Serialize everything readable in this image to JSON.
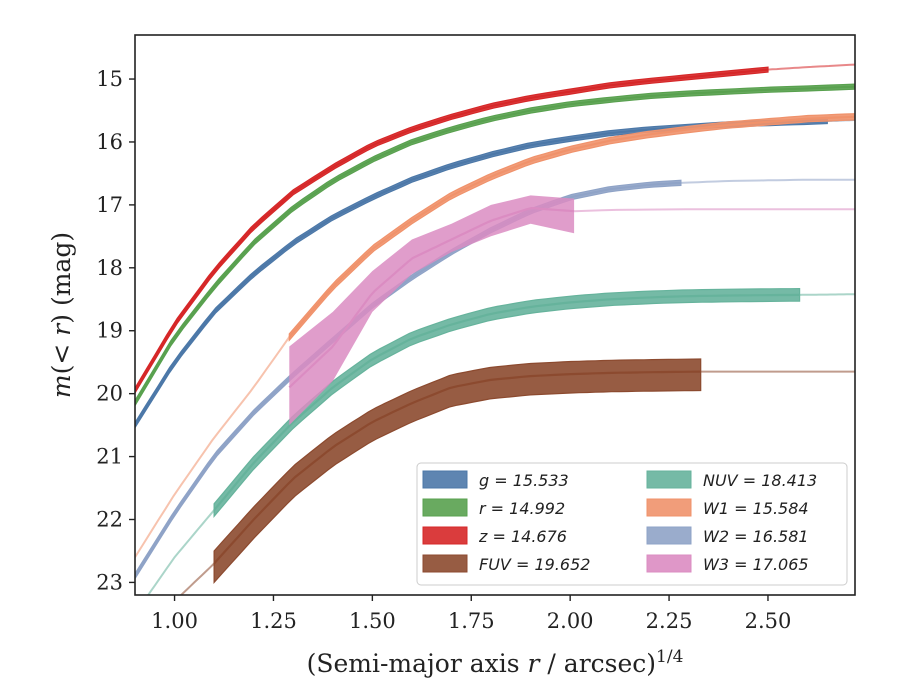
{
  "chart_data": {
    "type": "line",
    "xlabel": "(Semi-major axis r / arcsec)^{1/4}",
    "ylabel": "m(<r) (mag)",
    "xlim": [
      0.9,
      2.72
    ],
    "ylim": [
      23.2,
      14.3
    ],
    "y_inverted": true,
    "x_ticks": [
      "1.00",
      "1.25",
      "1.50",
      "1.75",
      "2.00",
      "2.25",
      "2.50"
    ],
    "y_ticks": [
      "15",
      "16",
      "17",
      "18",
      "19",
      "20",
      "21",
      "22",
      "23"
    ],
    "grid": false,
    "legend_position": "lower-right",
    "series": [
      {
        "key": "g",
        "name": "g = 15.533",
        "color": "#4c78a8",
        "end_obs": 2.65,
        "band": [
          0.04,
          0.04
        ],
        "x": [
          0.9,
          1.0,
          1.1,
          1.2,
          1.3,
          1.4,
          1.5,
          1.6,
          1.7,
          1.8,
          1.9,
          2.0,
          2.1,
          2.2,
          2.3,
          2.4,
          2.5,
          2.6,
          2.72
        ],
        "y": [
          20.5,
          19.5,
          18.7,
          18.1,
          17.6,
          17.2,
          16.88,
          16.6,
          16.38,
          16.2,
          16.05,
          15.95,
          15.86,
          15.8,
          15.76,
          15.72,
          15.7,
          15.68,
          15.65
        ]
      },
      {
        "key": "r",
        "name": "r = 14.992",
        "color": "#59a14f",
        "end_obs": 2.72,
        "band": [
          0.04,
          0.04
        ],
        "x": [
          0.9,
          1.0,
          1.1,
          1.2,
          1.3,
          1.4,
          1.5,
          1.6,
          1.7,
          1.8,
          1.9,
          2.0,
          2.1,
          2.2,
          2.3,
          2.4,
          2.5,
          2.6,
          2.72
        ],
        "y": [
          20.15,
          19.1,
          18.3,
          17.6,
          17.05,
          16.62,
          16.28,
          16.0,
          15.8,
          15.63,
          15.5,
          15.4,
          15.33,
          15.27,
          15.23,
          15.2,
          15.17,
          15.15,
          15.12
        ]
      },
      {
        "key": "z",
        "name": "z = 14.676",
        "color": "#d62728",
        "end_obs": 2.5,
        "band": [
          0.04,
          0.04
        ],
        "x": [
          0.9,
          1.0,
          1.1,
          1.2,
          1.3,
          1.4,
          1.5,
          1.6,
          1.7,
          1.8,
          1.9,
          2.0,
          2.1,
          2.2,
          2.3,
          2.4,
          2.5,
          2.6,
          2.72
        ],
        "y": [
          19.95,
          18.9,
          18.05,
          17.35,
          16.8,
          16.4,
          16.05,
          15.8,
          15.6,
          15.43,
          15.3,
          15.2,
          15.1,
          15.03,
          14.97,
          14.91,
          14.85,
          14.81,
          14.77
        ]
      },
      {
        "key": "FUV",
        "name": "FUV = 19.652",
        "color": "#8c4a2f",
        "start_obs": 1.1,
        "end_obs": 2.33,
        "band": [
          0.2,
          0.3
        ],
        "x": [
          0.9,
          1.0,
          1.1,
          1.2,
          1.3,
          1.4,
          1.5,
          1.6,
          1.7,
          1.8,
          1.9,
          2.0,
          2.1,
          2.2,
          2.33,
          2.72
        ],
        "y": [
          23.95,
          23.3,
          22.7,
          22.0,
          21.35,
          20.85,
          20.45,
          20.15,
          19.9,
          19.78,
          19.72,
          19.69,
          19.67,
          19.66,
          19.65,
          19.65
        ]
      },
      {
        "key": "NUV",
        "name": "NUV = 18.413",
        "color": "#66b39c",
        "start_obs": 1.1,
        "end_obs": 2.58,
        "band": [
          0.1,
          0.1
        ],
        "x": [
          0.9,
          1.0,
          1.1,
          1.2,
          1.3,
          1.4,
          1.5,
          1.6,
          1.7,
          1.8,
          1.9,
          2.0,
          2.1,
          2.2,
          2.3,
          2.4,
          2.58,
          2.72
        ],
        "y": [
          23.5,
          22.6,
          21.85,
          21.1,
          20.45,
          19.9,
          19.45,
          19.12,
          18.9,
          18.73,
          18.62,
          18.55,
          18.5,
          18.47,
          18.45,
          18.44,
          18.43,
          18.42
        ]
      },
      {
        "key": "W1",
        "name": "W1 = 15.584",
        "color": "#f0926b",
        "start_obs": 1.29,
        "end_obs": 2.72,
        "band": [
          0.05,
          0.05
        ],
        "x": [
          0.9,
          1.0,
          1.1,
          1.2,
          1.29,
          1.4,
          1.5,
          1.6,
          1.7,
          1.8,
          1.9,
          2.0,
          2.1,
          2.2,
          2.3,
          2.4,
          2.5,
          2.6,
          2.72
        ],
        "y": [
          22.6,
          21.6,
          20.7,
          19.9,
          19.1,
          18.3,
          17.7,
          17.25,
          16.85,
          16.55,
          16.3,
          16.12,
          15.98,
          15.88,
          15.8,
          15.73,
          15.68,
          15.63,
          15.6
        ]
      },
      {
        "key": "W2",
        "name": "W2 = 16.581",
        "color": "#8fa3c7",
        "start_obs": 0.9,
        "end_obs": 2.28,
        "band": [
          0.04,
          0.04
        ],
        "x": [
          0.9,
          1.0,
          1.1,
          1.2,
          1.3,
          1.4,
          1.5,
          1.6,
          1.7,
          1.8,
          1.9,
          2.0,
          2.1,
          2.2,
          2.28,
          2.4,
          2.5,
          2.6,
          2.72
        ],
        "y": [
          22.9,
          21.9,
          21.0,
          20.3,
          19.7,
          19.15,
          18.6,
          18.15,
          17.75,
          17.4,
          17.1,
          16.88,
          16.75,
          16.68,
          16.65,
          16.62,
          16.61,
          16.6,
          16.6
        ]
      },
      {
        "key": "W3",
        "name": "W3 = 17.065",
        "color": "#db8cc2",
        "start_obs": 1.29,
        "end_obs": 2.01,
        "band_upper": [
          19.25,
          18.7,
          18.05,
          17.55,
          17.3,
          17.0,
          16.85,
          16.9
        ],
        "band_lower": [
          20.5,
          19.8,
          18.7,
          18.1,
          17.75,
          17.5,
          17.3,
          17.45
        ],
        "band_x": [
          1.29,
          1.4,
          1.5,
          1.6,
          1.7,
          1.8,
          1.9,
          2.01
        ],
        "x": [
          1.29,
          1.4,
          1.5,
          1.6,
          1.7,
          1.8,
          1.9,
          2.01,
          2.1,
          2.3,
          2.5,
          2.72
        ],
        "y": [
          19.9,
          19.25,
          18.4,
          17.85,
          17.55,
          17.25,
          17.05,
          17.1,
          17.08,
          17.07,
          17.07,
          17.07
        ]
      }
    ],
    "legend": [
      {
        "key": "g",
        "label": "g = 15.533"
      },
      {
        "key": "r",
        "label": "r = 14.992"
      },
      {
        "key": "z",
        "label": "z = 14.676"
      },
      {
        "key": "FUV",
        "label": "FUV = 19.652"
      },
      {
        "key": "NUV",
        "label": "NUV = 18.413"
      },
      {
        "key": "W1",
        "label": "W1 = 15.584"
      },
      {
        "key": "W2",
        "label": "W2 = 16.581"
      },
      {
        "key": "W3",
        "label": "W3 = 17.065"
      }
    ]
  }
}
